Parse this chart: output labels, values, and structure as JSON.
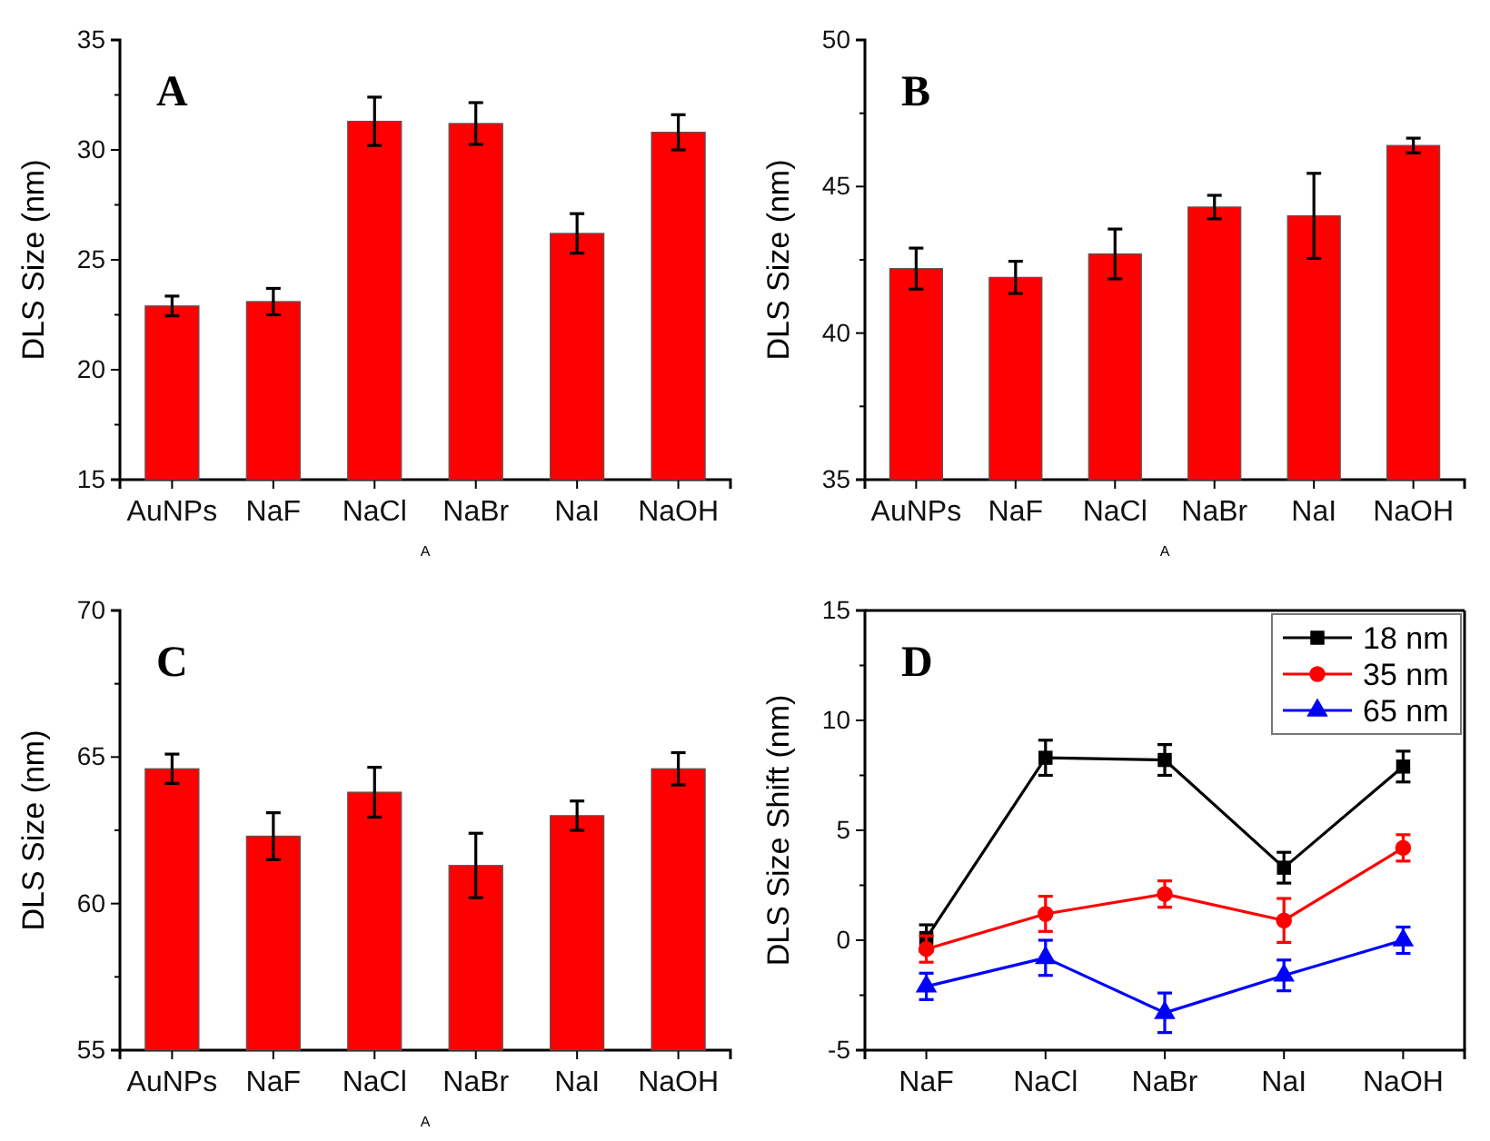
{
  "chart_data": [
    {
      "type": "bar",
      "title": "A",
      "ylabel": "DLS Size (nm)",
      "annotations": [
        "A"
      ],
      "categories": [
        "AuNPs",
        "NaF",
        "NaCl",
        "NaBr",
        "NaI",
        "NaOH"
      ],
      "values": [
        22.9,
        23.1,
        31.3,
        31.2,
        26.2,
        30.8
      ],
      "errors": [
        0.45,
        0.6,
        1.1,
        0.95,
        0.9,
        0.8
      ],
      "color": "#ff0000",
      "ylim": [
        15,
        35
      ],
      "yticks": [
        15,
        {
          "value": 17.5,
          "label": null
        },
        20,
        {
          "value": 22.5,
          "label": null
        },
        25,
        {
          "value": 27.5,
          "label": null
        },
        30,
        {
          "value": 32.5,
          "label": null
        },
        35
      ],
      "grid": false
    },
    {
      "type": "bar",
      "title": "B",
      "ylabel": "DLS Size (nm)",
      "annotations": [
        "A"
      ],
      "categories": [
        "AuNPs",
        "NaF",
        "NaCl",
        "NaBr",
        "NaI",
        "NaOH"
      ],
      "values": [
        42.2,
        41.9,
        42.7,
        44.3,
        44.0,
        46.4
      ],
      "errors": [
        0.7,
        0.55,
        0.85,
        0.4,
        1.45,
        0.25
      ],
      "color": "#ff0000",
      "ylim": [
        35,
        50
      ],
      "yticks": [
        35,
        {
          "value": 37.5,
          "label": null
        },
        40,
        {
          "value": 42.5,
          "label": null
        },
        45,
        {
          "value": 47.5,
          "label": null
        },
        50
      ],
      "grid": false
    },
    {
      "type": "bar",
      "title": "C",
      "ylabel": "DLS Size (nm)",
      "annotations": [
        "A"
      ],
      "categories": [
        "AuNPs",
        "NaF",
        "NaCl",
        "NaBr",
        "NaI",
        "NaOH"
      ],
      "values": [
        64.6,
        62.3,
        63.8,
        61.3,
        63.0,
        64.6
      ],
      "errors": [
        0.5,
        0.8,
        0.85,
        1.1,
        0.5,
        0.55
      ],
      "color": "#ff0000",
      "ylim": [
        55,
        70
      ],
      "yticks": [
        55,
        {
          "value": 57.5,
          "label": null
        },
        60,
        {
          "value": 62.5,
          "label": null
        },
        65,
        {
          "value": 67.5,
          "label": null
        },
        70
      ],
      "grid": false
    },
    {
      "type": "line",
      "title": "D",
      "ylabel": "DLS Size Shift (nm)",
      "categories": [
        "NaF",
        "NaCl",
        "NaBr",
        "NaI",
        "NaOH"
      ],
      "series": [
        {
          "name": "18 nm",
          "color": "#000000",
          "marker": "square",
          "values": [
            0.1,
            8.3,
            8.2,
            3.3,
            7.9
          ],
          "errors": [
            0.6,
            0.8,
            0.7,
            0.7,
            0.7
          ]
        },
        {
          "name": "35 nm",
          "color": "#ff0000",
          "marker": "circle",
          "values": [
            -0.4,
            1.2,
            2.1,
            0.9,
            4.2
          ],
          "errors": [
            0.6,
            0.8,
            0.6,
            1.0,
            0.6
          ]
        },
        {
          "name": "65 nm",
          "color": "#0000ff",
          "marker": "triangle",
          "values": [
            -2.1,
            -0.8,
            -3.3,
            -1.6,
            0.0
          ],
          "errors": [
            0.6,
            0.8,
            0.9,
            0.7,
            0.6
          ]
        }
      ],
      "ylim": [
        -5,
        15
      ],
      "yticks": [
        -5,
        {
          "value": -2.5,
          "label": null
        },
        0,
        {
          "value": 2.5,
          "label": null
        },
        5,
        {
          "value": 7.5,
          "label": null
        },
        10,
        {
          "value": 12.5,
          "label": null
        },
        15
      ],
      "grid": false,
      "legend": "top right",
      "line_style": "solid"
    }
  ]
}
